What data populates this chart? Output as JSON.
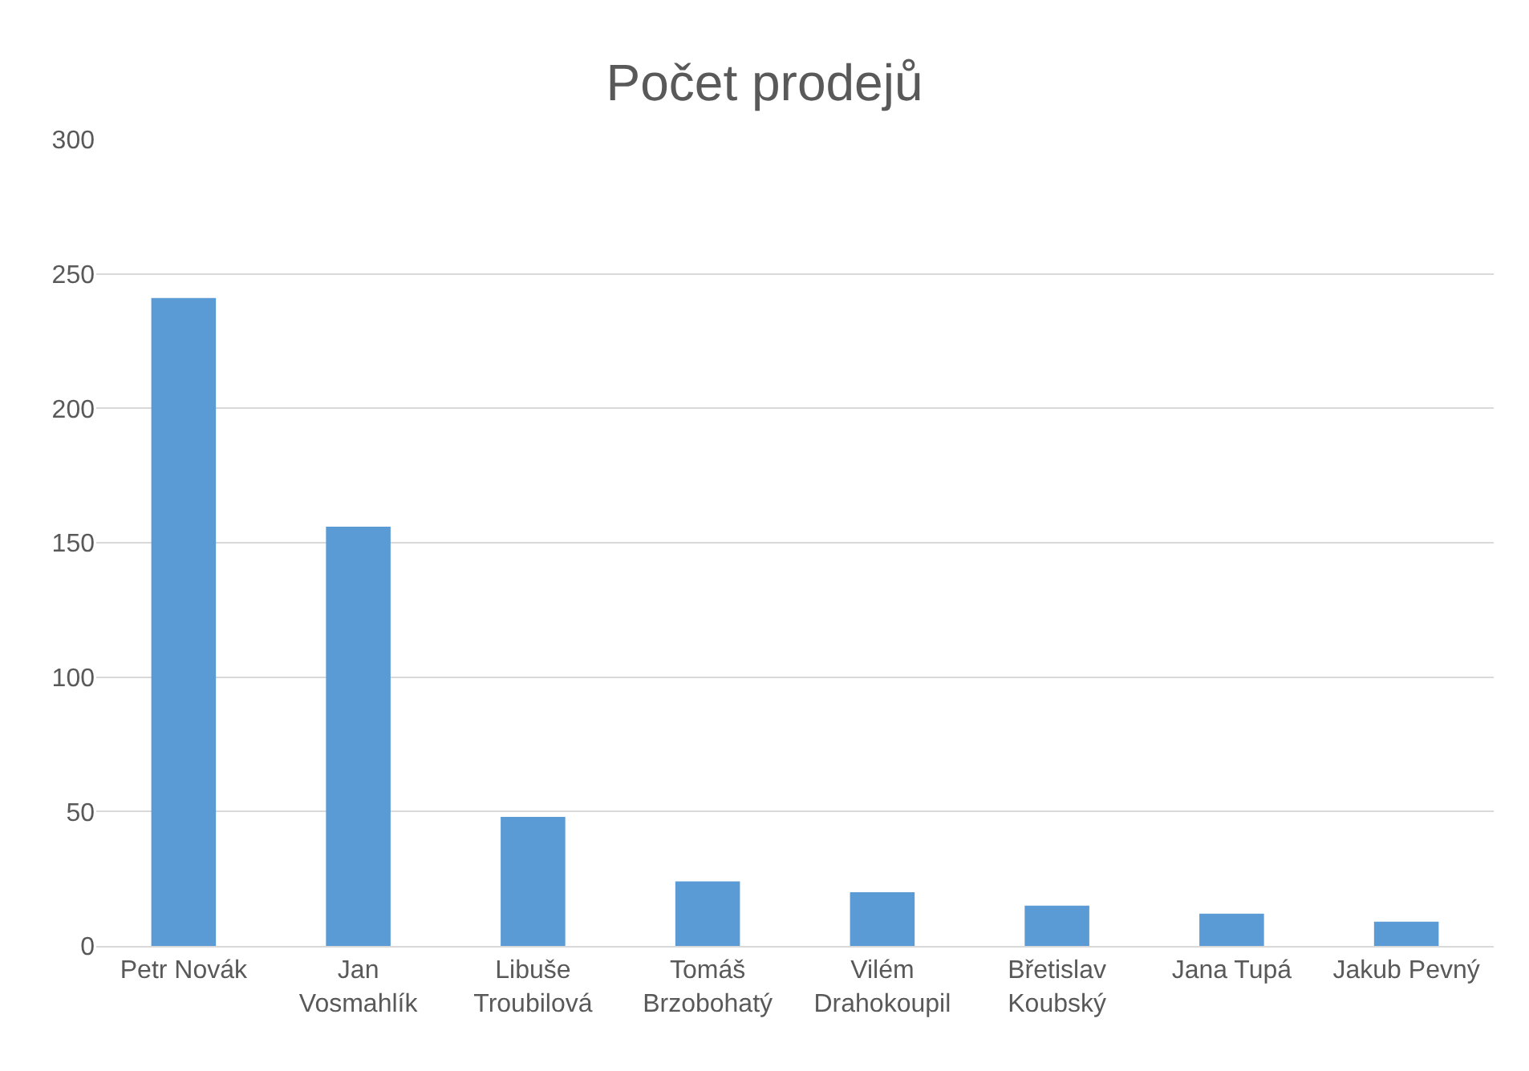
{
  "chart_data": {
    "type": "bar",
    "title": "Počet prodejů",
    "categories": [
      "Petr Novák",
      "Jan Vosmahlík",
      "Libuše Troubilová",
      "Tomáš Brzobohatý",
      "Vilém Drahokoupil",
      "Břetislav Koubský",
      "Jana Tupá",
      "Jakub Pevný"
    ],
    "values": [
      241,
      156,
      48,
      24,
      20,
      15,
      12,
      9
    ],
    "color": "#5b9bd5",
    "ylim": [
      0,
      300
    ],
    "yticks": [
      0,
      50,
      100,
      150,
      200,
      250,
      300
    ],
    "grid": "y"
  }
}
